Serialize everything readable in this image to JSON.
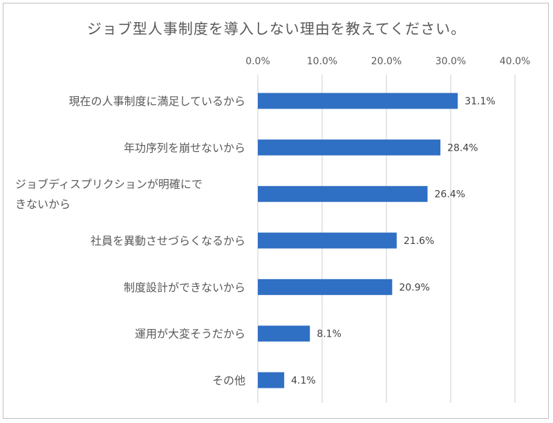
{
  "chart_data": {
    "type": "bar",
    "orientation": "horizontal",
    "title": "ジョブ型人事制度を導入しない理由を教えてください。",
    "categories": [
      [
        "現在の人事制度に満足しているから"
      ],
      [
        "年功序列を崩せないから"
      ],
      [
        "ジョブディスプリクションが明確にで",
        "きないから"
      ],
      [
        "社員を異動させづらくなるから"
      ],
      [
        "制度設計ができないから"
      ],
      [
        "運用が大変そうだから"
      ],
      [
        "その他"
      ]
    ],
    "values": [
      31.1,
      28.4,
      26.4,
      21.6,
      20.9,
      8.1,
      4.1
    ],
    "data_labels": [
      "31.1%",
      "28.4%",
      "26.4%",
      "21.6%",
      "20.9%",
      "8.1%",
      "4.1%"
    ],
    "xlim": [
      0,
      40
    ],
    "xticks": [
      0,
      10,
      20,
      30,
      40
    ],
    "xtick_labels": [
      "0.0%",
      "10.0%",
      "20.0%",
      "30.0%",
      "40.0%"
    ],
    "x_axis_position": "top",
    "grid": "vertical",
    "legend": "none",
    "colors": {
      "bar": "#3070c4",
      "grid": "#d9d9d9",
      "text": "#595959",
      "frame": "#bfbfbf"
    }
  }
}
